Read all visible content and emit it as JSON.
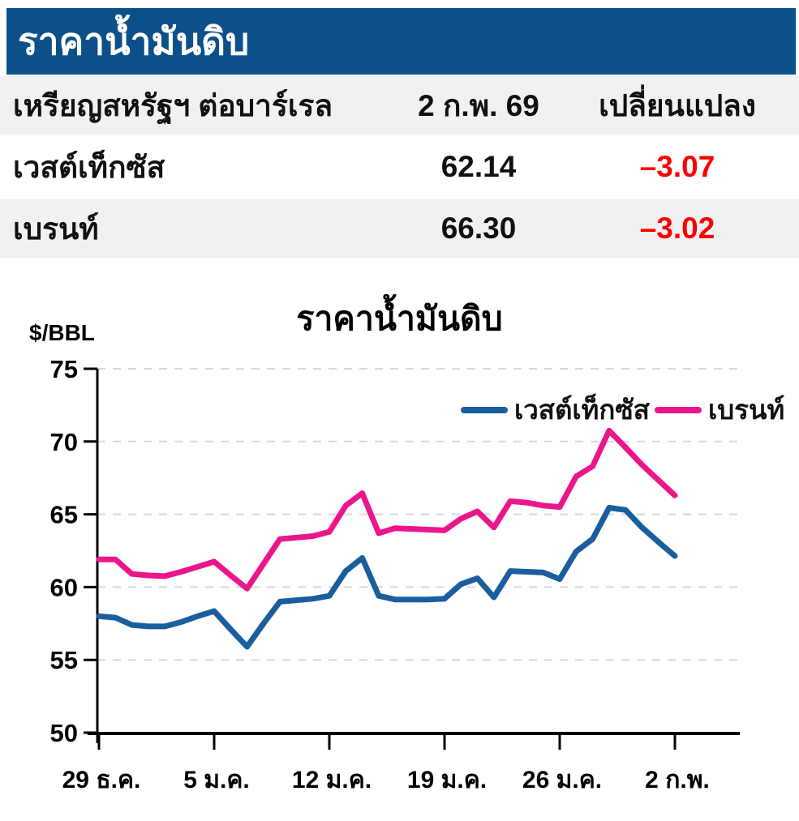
{
  "banner": {
    "title": "ราคาน้ำมันดิบ",
    "bg_color": "#0b5089"
  },
  "table": {
    "header": {
      "unit": "เหรียญสหรัฐฯ ต่อบาร์เรล",
      "date": "2 ก.พ. 69",
      "change": "เปลี่ยนแปลง"
    },
    "rows": [
      {
        "name": "เวสต์เท็กซัส",
        "price": "62.14",
        "change": "–3.07"
      },
      {
        "name": "เบรนท์",
        "price": "66.30",
        "change": "–3.02"
      }
    ],
    "alt_row_bg": "#f1f1f2",
    "negative_color": "#fa0000"
  },
  "chart_data": {
    "type": "line",
    "title": "ราคาน้ำมันดิบ",
    "ylabel": "$/BBL",
    "ylim": [
      50,
      75
    ],
    "ytick_step": 5,
    "grid": true,
    "legend_position": "top-right-inside",
    "x_ticklabels": [
      "29 ธ.ค.",
      "5 ม.ค.",
      "12 ม.ค.",
      "19 ม.ค.",
      "26 ม.ค.",
      "2 ก.พ."
    ],
    "tick_indices": [
      0,
      7,
      14,
      21,
      28,
      35
    ],
    "series": [
      {
        "name": "เวสต์เท็กซัส",
        "color": "#1a5e9d",
        "values": [
          58.0,
          57.9,
          57.4,
          57.3,
          57.3,
          57.6,
          58.0,
          58.35,
          57.1,
          55.9,
          57.5,
          59.0,
          59.1,
          59.2,
          59.4,
          61.1,
          62.0,
          59.4,
          59.15,
          59.15,
          59.15,
          59.2,
          60.2,
          60.6,
          59.3,
          61.1,
          61.05,
          61.0,
          60.55,
          62.45,
          63.3,
          65.45,
          65.3,
          64.1,
          63.1,
          62.14
        ]
      },
      {
        "name": "เบรนท์",
        "color": "#ec168c",
        "values": [
          61.9,
          61.9,
          60.9,
          60.8,
          60.75,
          61.05,
          61.4,
          61.75,
          60.8,
          59.9,
          61.6,
          63.3,
          63.4,
          63.5,
          63.8,
          65.6,
          66.45,
          63.7,
          64.05,
          64.0,
          63.95,
          63.9,
          64.7,
          65.2,
          64.1,
          65.9,
          65.8,
          65.6,
          65.5,
          67.6,
          68.3,
          70.75,
          69.6,
          68.4,
          67.35,
          66.3
        ]
      }
    ],
    "axis_color": "#000000",
    "gridline_color": "#d8d8d8"
  }
}
